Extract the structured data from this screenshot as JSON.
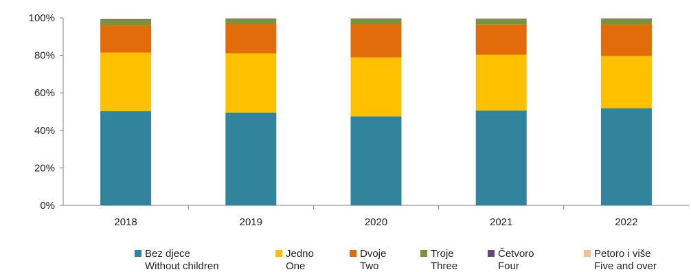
{
  "chart_data": {
    "type": "bar",
    "stacked": true,
    "categories": [
      "2018",
      "2019",
      "2020",
      "2021",
      "2022"
    ],
    "ylim": [
      0,
      100
    ],
    "yticks": [
      "0%",
      "20%",
      "40%",
      "60%",
      "80%",
      "100%"
    ],
    "grid": false,
    "legend_position": "bottom",
    "series": [
      {
        "name": "Bez djece",
        "name_en": "Without children",
        "color": "#31849b",
        "values": [
          50.2,
          49.5,
          47.5,
          50.6,
          51.8
        ]
      },
      {
        "name": "Jedno",
        "name_en": "One",
        "color": "#ffc000",
        "values": [
          31.3,
          31.6,
          31.4,
          29.7,
          27.9
        ]
      },
      {
        "name": "Dvoje",
        "name_en": "Two",
        "color": "#e36c0a",
        "values": [
          14.6,
          15.6,
          17.8,
          16.1,
          16.8
        ]
      },
      {
        "name": "Troje",
        "name_en": "Three",
        "color": "#77933c",
        "values": [
          2.9,
          2.6,
          2.6,
          2.8,
          2.8
        ]
      },
      {
        "name": "Četvoro",
        "name_en": "Four",
        "color": "#604a7b",
        "values": [
          0.3,
          0.3,
          0.3,
          0.3,
          0.3
        ]
      },
      {
        "name": "Petoro i više",
        "name_en": "Five and over",
        "color": "#fac090",
        "values": [
          0.2,
          0.2,
          0.2,
          0.2,
          0.2
        ]
      }
    ]
  }
}
